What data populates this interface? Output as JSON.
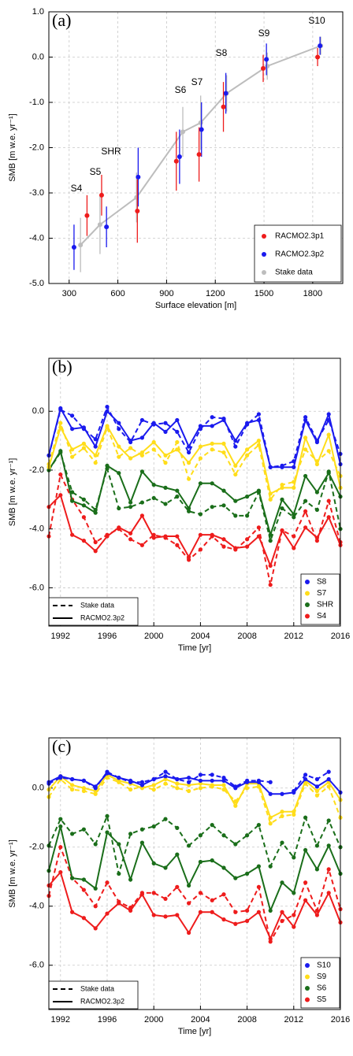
{
  "chart_data": [
    {
      "type": "scatter",
      "panel_label": "(a)",
      "xlabel": "Surface elevation [m]",
      "ylabel": "SMB [m w.e. yr⁻¹]",
      "xlim": [
        175,
        1985
      ],
      "xticks": [
        300,
        600,
        900,
        1200,
        1500,
        1800
      ],
      "ylim": [
        -5,
        1
      ],
      "yticks": [
        {
          "value": 1,
          "label": "1.0"
        },
        {
          "value": 0,
          "label": "0.0"
        },
        {
          "value": -1,
          "label": "-1.0"
        },
        {
          "value": -2,
          "label": "-2.0"
        },
        {
          "value": -3,
          "label": "-3.0"
        },
        {
          "value": -4,
          "label": "-4.0"
        },
        {
          "value": -5,
          "label": "-5.0"
        }
      ],
      "grid": true,
      "legend": "lower right",
      "annotations": [
        "S4",
        "S5",
        "SHR",
        "S6",
        "S7",
        "S8",
        "S9",
        "S10"
      ],
      "series": [
        {
          "name": "RACMO2.3p1",
          "color": "#ee1c1c",
          "line": false,
          "x": [
            410,
            500,
            720,
            960,
            1100,
            1250,
            1495,
            1830
          ],
          "values": [
            -3.5,
            -3.05,
            -3.4,
            -2.3,
            -2.15,
            -1.1,
            -0.25,
            0.0
          ],
          "errors": [
            0.45,
            0.45,
            0.7,
            0.65,
            0.6,
            0.55,
            0.3,
            0.2
          ]
        },
        {
          "name": "RACMO2.3p2",
          "color": "#1a1aee",
          "line": false,
          "x": [
            330,
            530,
            725,
            980,
            1115,
            1265,
            1515,
            1845
          ],
          "values": [
            -4.2,
            -3.75,
            -2.65,
            -2.2,
            -1.6,
            -0.8,
            -0.05,
            0.25
          ],
          "errors": [
            0.5,
            0.45,
            0.65,
            0.6,
            0.6,
            0.45,
            0.35,
            0.2
          ]
        },
        {
          "name": "Stake data",
          "color": "#bdbdbd",
          "line": true,
          "x": [
            370,
            490,
            715,
            1000,
            1110,
            1270,
            1520,
            1850
          ],
          "values": [
            -4.15,
            -3.7,
            -3.1,
            -1.65,
            -1.45,
            -0.8,
            -0.2,
            0.25
          ],
          "errors": [
            0.6,
            0.65,
            0.55,
            0.55,
            0.6,
            0.4,
            0.3,
            0.2
          ]
        }
      ]
    },
    {
      "type": "line",
      "panel_label": "(b)",
      "xlabel": "Time [yr]",
      "ylabel": "SMB [m w.e. yr⁻¹]",
      "x": [
        1991,
        1992,
        1993,
        1994,
        1995,
        1996,
        1997,
        1998,
        1999,
        2000,
        2001,
        2002,
        2003,
        2004,
        2005,
        2006,
        2007,
        2008,
        2009,
        2010,
        2011,
        2012,
        2013,
        2014,
        2015,
        2016
      ],
      "xlim": [
        1991,
        2016
      ],
      "xticks": [
        1992,
        1996,
        2000,
        2004,
        2008,
        2012,
        2016
      ],
      "ylim": [
        -7.3,
        1.8
      ],
      "yticks": [
        {
          "value": 0,
          "label": "0.0"
        },
        {
          "value": -2,
          "label": "-2.0"
        },
        {
          "value": -4,
          "label": "-4.0"
        },
        {
          "value": -6,
          "label": "-6.0"
        }
      ],
      "grid": true,
      "legend": "lower right",
      "linestyle_legend": [
        "Stake data",
        "RACMO2.3p2"
      ],
      "series": [
        {
          "name": "S8",
          "color": "#1a1aee",
          "values": [
            -1.5,
            0.1,
            -0.6,
            -0.55,
            -1.2,
            0.0,
            -0.4,
            -1.0,
            -0.9,
            -0.4,
            -0.7,
            -0.3,
            -1.2,
            -0.5,
            -0.5,
            -0.3,
            -1.0,
            -0.4,
            -0.3,
            -1.9,
            -1.9,
            -1.9,
            -0.3,
            -1.05,
            -0.1,
            -1.8
          ],
          "stake_values": [
            -1.5,
            0.05,
            -0.15,
            -0.6,
            -0.95,
            0.15,
            -0.6,
            -1.05,
            -0.3,
            -0.45,
            -0.4,
            -0.7,
            -1.4,
            -0.6,
            -0.2,
            -0.25,
            -1.2,
            -0.45,
            -0.1,
            -1.9,
            -1.85,
            -1.7,
            -0.2,
            -1.0,
            -0.3,
            -1.45
          ]
        },
        {
          "name": "S7",
          "color": "#ffdd1a",
          "values": [
            -1.9,
            -0.55,
            -1.3,
            -1.1,
            -1.5,
            -0.5,
            -1.2,
            -1.6,
            -1.4,
            -1.05,
            -1.5,
            -1.3,
            -1.75,
            -1.2,
            -1.1,
            -1.1,
            -1.85,
            -1.3,
            -1.0,
            -2.8,
            -2.6,
            -2.6,
            -0.9,
            -1.8,
            -0.8,
            -2.6
          ],
          "stake_values": [
            -1.8,
            -0.4,
            -1.55,
            -1.25,
            -1.75,
            -0.55,
            -1.55,
            -1.25,
            -1.5,
            -1.3,
            -1.75,
            -1.05,
            -2.3,
            -1.6,
            -1.3,
            -1.4,
            -2.15,
            -1.5,
            -1.15,
            -3.0,
            -2.5,
            -2.4,
            -1.3,
            -1.7,
            -1.35,
            -2.2
          ]
        },
        {
          "name": "SHR",
          "color": "#1a6e1a",
          "values": [
            -2.0,
            -1.35,
            -3.05,
            -3.2,
            -3.45,
            -1.85,
            -2.1,
            -3.1,
            -2.05,
            -2.5,
            -2.6,
            -2.7,
            -3.3,
            -2.45,
            -2.45,
            -2.7,
            -3.05,
            -2.9,
            -2.7,
            -4.2,
            -3.0,
            -3.5,
            -2.2,
            -2.75,
            -2.1,
            -2.9
          ],
          "stake_values": [
            -2.0,
            -1.4,
            -2.75,
            -3.0,
            -3.35,
            -1.95,
            -3.3,
            -3.25,
            -3.1,
            -2.95,
            -3.15,
            -2.9,
            -3.4,
            -3.5,
            -3.25,
            -3.2,
            -3.55,
            -3.55,
            -2.75,
            -4.4,
            -3.3,
            -3.6,
            -3.05,
            -3.35,
            -2.05,
            -4.0
          ]
        },
        {
          "name": "S4",
          "color": "#ee1c1c",
          "values": [
            -3.25,
            -2.85,
            -4.2,
            -4.4,
            -4.75,
            -4.25,
            -3.95,
            -4.15,
            -3.55,
            -4.3,
            -4.25,
            -4.25,
            -4.95,
            -4.2,
            -4.2,
            -4.35,
            -4.65,
            -4.6,
            -4.25,
            -5.25,
            -4.05,
            -4.65,
            -3.95,
            -4.3,
            -3.6,
            -4.55
          ],
          "stake_values": [
            -4.25,
            -2.15,
            -3.0,
            -3.6,
            -4.45,
            -4.2,
            -4.0,
            -4.35,
            -4.55,
            -4.2,
            -4.3,
            -4.55,
            -5.05,
            -4.7,
            -4.25,
            -4.6,
            -4.7,
            -4.35,
            -3.95,
            -5.9,
            -4.05,
            -4.25,
            -3.4,
            -4.4,
            -3.05,
            -4.45
          ]
        }
      ]
    },
    {
      "type": "line",
      "panel_label": "(c)",
      "xlabel": "Time [yr]",
      "ylabel": "SMB [m w.e. yr⁻¹]",
      "x": [
        1991,
        1992,
        1993,
        1994,
        1995,
        1996,
        1997,
        1998,
        1999,
        2000,
        2001,
        2002,
        2003,
        2004,
        2005,
        2006,
        2007,
        2008,
        2009,
        2010,
        2011,
        2012,
        2013,
        2014,
        2015,
        2016
      ],
      "xlim": [
        1991,
        2016
      ],
      "xticks": [
        1992,
        1996,
        2000,
        2004,
        2008,
        2012,
        2016
      ],
      "ylim": [
        -7.5,
        1.7
      ],
      "yticks": [
        {
          "value": 0,
          "label": "0.0"
        },
        {
          "value": -2,
          "label": "-2.0"
        },
        {
          "value": -4,
          "label": "-4.0"
        },
        {
          "value": -6,
          "label": "-6.0"
        }
      ],
      "grid": true,
      "legend": "lower right",
      "linestyle_legend": [
        "Stake data",
        "RACMO2.3p2"
      ],
      "series": [
        {
          "name": "S10",
          "color": "#1a1aee",
          "values": [
            0.2,
            0.4,
            0.3,
            0.25,
            0.05,
            0.5,
            0.35,
            0.25,
            0.1,
            0.3,
            0.4,
            0.3,
            0.35,
            0.25,
            0.25,
            0.25,
            0.0,
            0.2,
            0.2,
            -0.2,
            -0.2,
            -0.15,
            0.3,
            0.05,
            0.3,
            -0.15
          ],
          "stake_values": [
            0.15,
            0.35,
            0.3,
            0.25,
            0.0,
            0.55,
            0.35,
            0.2,
            0.2,
            0.3,
            0.55,
            0.3,
            0.2,
            0.45,
            0.45,
            0.35,
            0.05,
            0.25,
            0.25,
            0.2,
            null,
            -0.1,
            0.45,
            0.3,
            0.55,
            null
          ]
        },
        {
          "name": "S9",
          "color": "#ffdd1a",
          "values": [
            -0.05,
            0.4,
            0.1,
            0.0,
            -0.1,
            0.45,
            0.25,
            0.15,
            0.0,
            0.1,
            0.3,
            0.15,
            0.1,
            0.15,
            0.1,
            0.1,
            -0.6,
            0.15,
            0.15,
            -1.0,
            -0.8,
            -0.8,
            0.25,
            -0.1,
            0.2,
            -0.4
          ],
          "stake_values": [
            -0.3,
            0.3,
            -0.05,
            -0.1,
            -0.2,
            0.35,
            0.2,
            -0.05,
            0.05,
            -0.05,
            0.15,
            0.0,
            -0.1,
            0.0,
            0.05,
            -0.05,
            -0.45,
            0.0,
            0.05,
            -1.2,
            -0.95,
            -0.9,
            0.15,
            -0.25,
            0.05,
            -1.0
          ]
        },
        {
          "name": "S6",
          "color": "#1a6e1a",
          "values": [
            -2.8,
            -1.3,
            -3.05,
            -3.1,
            -3.4,
            -1.5,
            -1.9,
            -3.1,
            -1.85,
            -2.55,
            -2.7,
            -2.25,
            -3.3,
            -2.5,
            -2.45,
            -2.7,
            -3.05,
            -2.9,
            -2.65,
            -4.15,
            -3.2,
            -3.55,
            -2.1,
            -2.75,
            -1.95,
            -2.9
          ],
          "stake_values": [
            -1.95,
            -1.05,
            -1.55,
            -1.4,
            -1.9,
            -0.95,
            -2.9,
            -1.55,
            -1.4,
            -1.3,
            -1.05,
            -1.35,
            -1.95,
            -1.6,
            -1.25,
            -1.6,
            -1.9,
            -1.6,
            -1.25,
            -2.65,
            -1.85,
            -2.35,
            -1.0,
            -1.95,
            -1.1,
            -2.0
          ]
        },
        {
          "name": "S5",
          "color": "#ee1c1c",
          "values": [
            -3.3,
            -2.85,
            -4.2,
            -4.4,
            -4.75,
            -4.25,
            -3.9,
            -4.15,
            -3.6,
            -4.3,
            -4.35,
            -4.3,
            -4.9,
            -4.2,
            -4.2,
            -4.45,
            -4.6,
            -4.5,
            -4.2,
            -5.1,
            -4.2,
            -4.7,
            -3.8,
            -4.3,
            -3.55,
            -4.55
          ],
          "stake_values": [
            -3.65,
            -2.0,
            -3.05,
            -3.45,
            -4.0,
            -3.2,
            -3.85,
            -4.05,
            -3.55,
            -3.55,
            -3.75,
            -3.35,
            -3.9,
            -3.55,
            -3.8,
            -3.6,
            -4.2,
            -4.15,
            -3.35,
            -5.2,
            -4.5,
            -4.3,
            -3.2,
            -4.15,
            -2.75,
            -4.1
          ]
        }
      ]
    }
  ]
}
